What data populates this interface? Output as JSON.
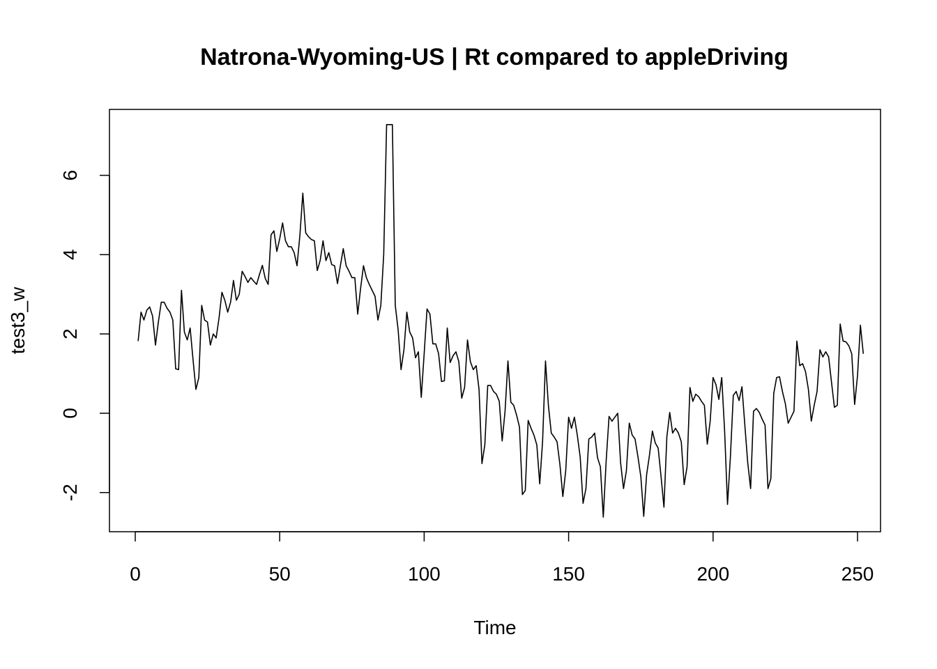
{
  "chart_data": {
    "type": "line",
    "title": "Natrona-Wyoming-US | Rt compared to appleDriving",
    "xlabel": "Time",
    "ylabel": "test3_w",
    "xlim": [
      0,
      250
    ],
    "ylim": [
      -2.6,
      7.3
    ],
    "x_ticks": [
      0,
      50,
      100,
      150,
      200,
      250
    ],
    "y_ticks": [
      -2,
      0,
      2,
      4,
      6
    ],
    "grid": false,
    "legend": "none",
    "line_color": "#000000",
    "x_start": 1,
    "series": [
      {
        "values": [
          1.82,
          2.55,
          2.35,
          2.6,
          2.68,
          2.45,
          1.72,
          2.3,
          2.8,
          2.8,
          2.65,
          2.55,
          2.35,
          1.12,
          1.1,
          3.1,
          2.05,
          1.85,
          2.15,
          1.35,
          0.6,
          0.9,
          2.72,
          2.35,
          2.3,
          1.72,
          2.0,
          1.9,
          2.4,
          3.05,
          2.85,
          2.55,
          2.8,
          3.35,
          2.85,
          3.0,
          3.58,
          3.45,
          3.3,
          3.42,
          3.33,
          3.25,
          3.5,
          3.73,
          3.4,
          3.25,
          4.5,
          4.6,
          4.08,
          4.4,
          4.8,
          4.35,
          4.2,
          4.2,
          4.05,
          3.72,
          4.5,
          5.55,
          4.55,
          4.45,
          4.38,
          4.35,
          3.6,
          3.85,
          4.35,
          3.85,
          4.05,
          3.75,
          3.72,
          3.27,
          3.72,
          4.15,
          3.72,
          3.58,
          3.42,
          3.42,
          2.5,
          3.15,
          3.72,
          3.42,
          3.25,
          3.1,
          2.95,
          2.35,
          2.72,
          4.0,
          7.28,
          7.28,
          7.28,
          2.72,
          2.1,
          1.1,
          1.6,
          2.55,
          2.05,
          1.9,
          1.4,
          1.55,
          0.4,
          1.5,
          2.63,
          2.5,
          1.75,
          1.75,
          1.5,
          0.8,
          0.82,
          2.15,
          1.28,
          1.45,
          1.55,
          1.3,
          0.38,
          0.65,
          1.85,
          1.3,
          1.1,
          1.2,
          0.6,
          -1.27,
          -0.8,
          0.7,
          0.7,
          0.55,
          0.48,
          0.3,
          -0.7,
          0.05,
          1.32,
          0.28,
          0.2,
          -0.05,
          -0.35,
          -2.05,
          -1.95,
          -0.18,
          -0.38,
          -0.55,
          -0.8,
          -1.78,
          -0.7,
          1.32,
          0.2,
          -0.5,
          -0.6,
          -0.72,
          -1.3,
          -2.1,
          -1.45,
          -0.1,
          -0.38,
          -0.1,
          -0.55,
          -1.1,
          -2.27,
          -1.9,
          -0.65,
          -0.6,
          -0.5,
          -1.12,
          -1.35,
          -2.62,
          -1.2,
          -0.08,
          -0.2,
          -0.1,
          0.0,
          -1.25,
          -1.9,
          -1.45,
          -0.25,
          -0.55,
          -0.65,
          -1.1,
          -1.6,
          -2.6,
          -1.55,
          -1.05,
          -0.45,
          -0.75,
          -0.88,
          -1.6,
          -2.37,
          -0.6,
          0.02,
          -0.5,
          -0.38,
          -0.5,
          -0.72,
          -1.8,
          -1.35,
          0.65,
          0.3,
          0.48,
          0.42,
          0.3,
          0.2,
          -0.78,
          -0.2,
          0.9,
          0.72,
          0.35,
          0.9,
          -0.45,
          -2.3,
          -1.1,
          0.45,
          0.55,
          0.32,
          0.67,
          -0.3,
          -1.25,
          -1.9,
          0.05,
          0.12,
          0.02,
          -0.15,
          -0.3,
          -1.9,
          -1.65,
          0.5,
          0.9,
          0.92,
          0.55,
          0.25,
          -0.25,
          -0.1,
          0.05,
          1.82,
          1.2,
          1.25,
          1.05,
          0.6,
          -0.2,
          0.2,
          0.55,
          1.6,
          1.42,
          1.55,
          1.42,
          0.78,
          0.15,
          0.2,
          2.25,
          1.82,
          1.8,
          1.7,
          1.5,
          0.22,
          0.95,
          2.22,
          1.5
        ]
      }
    ]
  }
}
